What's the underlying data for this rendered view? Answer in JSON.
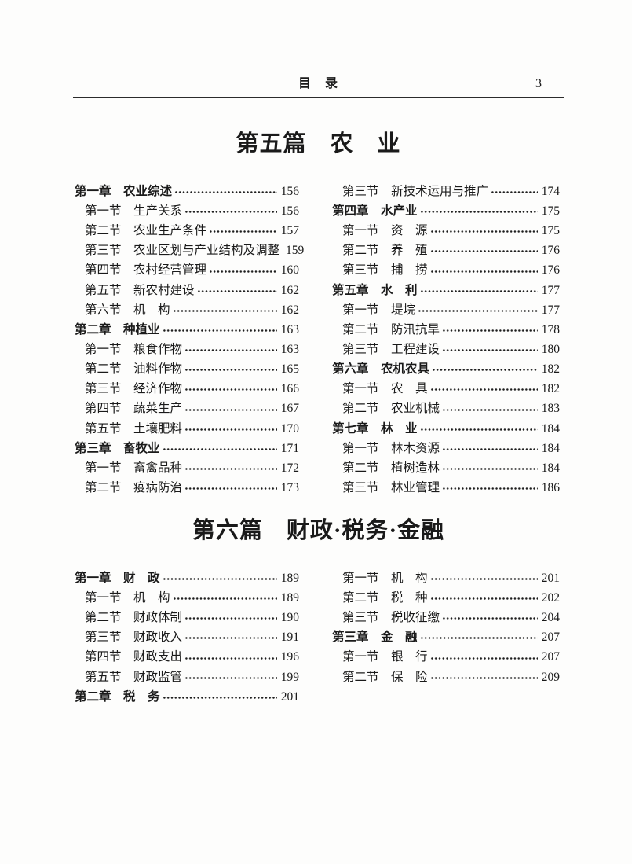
{
  "header": {
    "title": "目　录",
    "page_number": "3"
  },
  "sections": [
    {
      "title": "第五篇　农　业",
      "left": [
        {
          "type": "chapter",
          "label": "第一章　农业综述",
          "page": "156"
        },
        {
          "type": "section",
          "label": "第一节　生产关系",
          "page": "156"
        },
        {
          "type": "section",
          "label": "第二节　农业生产条件",
          "page": "157"
        },
        {
          "type": "section",
          "label": "第三节　农业区划与产业结构及调整",
          "page": "159"
        },
        {
          "type": "section",
          "label": "第四节　农村经营管理",
          "page": "160"
        },
        {
          "type": "section",
          "label": "第五节　新农村建设",
          "page": "162"
        },
        {
          "type": "section",
          "label": "第六节　机　构",
          "page": "162"
        },
        {
          "type": "chapter",
          "label": "第二章　种植业",
          "page": "163"
        },
        {
          "type": "section",
          "label": "第一节　粮食作物",
          "page": "163"
        },
        {
          "type": "section",
          "label": "第二节　油料作物",
          "page": "165"
        },
        {
          "type": "section",
          "label": "第三节　经济作物",
          "page": "166"
        },
        {
          "type": "section",
          "label": "第四节　蔬菜生产",
          "page": "167"
        },
        {
          "type": "section",
          "label": "第五节　土壤肥料",
          "page": "170"
        },
        {
          "type": "chapter",
          "label": "第三章　畜牧业",
          "page": "171"
        },
        {
          "type": "section",
          "label": "第一节　畜禽品种",
          "page": "172"
        },
        {
          "type": "section",
          "label": "第二节　疫病防治",
          "page": "173"
        }
      ],
      "right": [
        {
          "type": "section",
          "label": "第三节　新技术运用与推广",
          "page": "174"
        },
        {
          "type": "chapter",
          "label": "第四章　水产业",
          "page": "175"
        },
        {
          "type": "section",
          "label": "第一节　资　源",
          "page": "175"
        },
        {
          "type": "section",
          "label": "第二节　养　殖",
          "page": "176"
        },
        {
          "type": "section",
          "label": "第三节　捕　捞",
          "page": "176"
        },
        {
          "type": "chapter",
          "label": "第五章　水　利",
          "page": "177"
        },
        {
          "type": "section",
          "label": "第一节　堤垸",
          "page": "177"
        },
        {
          "type": "section",
          "label": "第二节　防汛抗旱",
          "page": "178"
        },
        {
          "type": "section",
          "label": "第三节　工程建设",
          "page": "180"
        },
        {
          "type": "chapter",
          "label": "第六章　农机农具",
          "page": "182"
        },
        {
          "type": "section",
          "label": "第一节　农　具",
          "page": "182"
        },
        {
          "type": "section",
          "label": "第二节　农业机械",
          "page": "183"
        },
        {
          "type": "chapter",
          "label": "第七章　林　业",
          "page": "184"
        },
        {
          "type": "section",
          "label": "第一节　林木资源",
          "page": "184"
        },
        {
          "type": "section",
          "label": "第二节　植树造林",
          "page": "184"
        },
        {
          "type": "section",
          "label": "第三节　林业管理",
          "page": "186"
        }
      ]
    },
    {
      "title": "第六篇　财政·税务·金融",
      "left": [
        {
          "type": "chapter",
          "label": "第一章　财　政",
          "page": "189"
        },
        {
          "type": "section",
          "label": "第一节　机　构",
          "page": "189"
        },
        {
          "type": "section",
          "label": "第二节　财政体制",
          "page": "190"
        },
        {
          "type": "section",
          "label": "第三节　财政收入",
          "page": "191"
        },
        {
          "type": "section",
          "label": "第四节　财政支出",
          "page": "196"
        },
        {
          "type": "section",
          "label": "第五节　财政监管",
          "page": "199"
        },
        {
          "type": "chapter",
          "label": "第二章　税　务",
          "page": "201"
        }
      ],
      "right": [
        {
          "type": "section",
          "label": "第一节　机　构",
          "page": "201"
        },
        {
          "type": "section",
          "label": "第二节　税　种",
          "page": "202"
        },
        {
          "type": "section",
          "label": "第三节　税收征缴",
          "page": "204"
        },
        {
          "type": "chapter",
          "label": "第三章　金　融",
          "page": "207"
        },
        {
          "type": "section",
          "label": "第一节　银　行",
          "page": "207"
        },
        {
          "type": "section",
          "label": "第二节　保　险",
          "page": "209"
        }
      ]
    }
  ]
}
